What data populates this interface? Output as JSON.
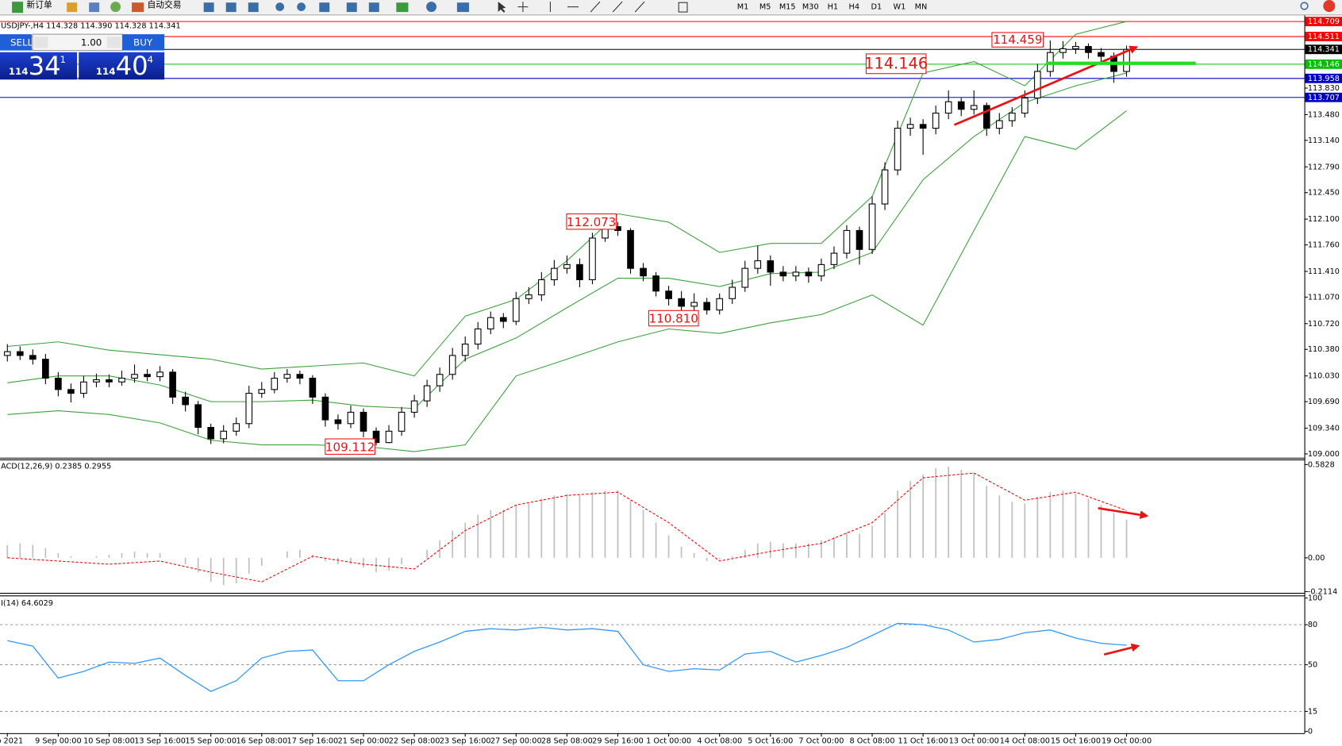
{
  "toolbar": {
    "new_order": "新订单",
    "auto_trading": "自动交易",
    "timeframes": [
      "M1",
      "M5",
      "M15",
      "M30",
      "H1",
      "H4",
      "D1",
      "W1",
      "MN"
    ]
  },
  "order_panel": {
    "sell_label": "SELL",
    "buy_label": "BUY",
    "lots": "1.00",
    "sell": {
      "big": "114",
      "pips": "34",
      "frac": "1"
    },
    "buy": {
      "big": "114",
      "pips": "40",
      "frac": "4"
    }
  },
  "chart_data": [
    {
      "type": "candlestick",
      "title": "USDJPY-,H4  114.328 114.390 114.328 114.341",
      "categories": [
        "ep 2021",
        null,
        null,
        null,
        "9 Sep 00:00",
        null,
        null,
        null,
        "10 Sep 08:00",
        null,
        null,
        null,
        "13 Sep 16:00",
        null,
        null,
        null,
        "15 Sep 00:00",
        null,
        null,
        null,
        "16 Sep 08:00",
        null,
        null,
        null,
        "17 Sep 16:00",
        null,
        null,
        null,
        "21 Sep 00:00",
        null,
        null,
        null,
        "22 Sep 08:00",
        null,
        null,
        null,
        "23 Sep 16:00",
        null,
        null,
        null,
        "27 Sep 00:00",
        null,
        null,
        null,
        "28 Sep 08:00",
        null,
        null,
        null,
        "29 Sep 16:00",
        null,
        null,
        null,
        "1 Oct 00:00",
        null,
        null,
        null,
        "4 Oct 08:00",
        null,
        null,
        null,
        "5 Oct 16:00",
        null,
        null,
        null,
        "7 Oct 00:00",
        null,
        null,
        null,
        "8 Oct 08:00",
        null,
        null,
        null,
        "11 Oct 16:00",
        null,
        null,
        null,
        "13 Oct 00:00",
        null,
        null,
        null,
        "14 Oct 08:00",
        null,
        null,
        null,
        "15 Oct 16:00",
        null,
        null,
        null,
        "19 Oct 00:00"
      ],
      "open": [
        110.3,
        110.35,
        110.3,
        110.25,
        110.0,
        109.85,
        109.8,
        109.95,
        109.98,
        109.95,
        110.0,
        110.05,
        110.02,
        110.08,
        109.75,
        109.65,
        109.35,
        109.2,
        109.3,
        109.4,
        109.8,
        109.85,
        110.0,
        110.05,
        110.0,
        109.75,
        109.45,
        109.4,
        109.55,
        109.3,
        109.15,
        109.3,
        109.55,
        109.7,
        109.9,
        110.05,
        110.3,
        110.45,
        110.65,
        110.8,
        110.75,
        111.05,
        111.1,
        111.3,
        111.45,
        111.5,
        111.3,
        111.85,
        112.0,
        111.95,
        111.45,
        111.35,
        111.15,
        111.05,
        110.95,
        111.0,
        110.9,
        111.05,
        111.2,
        111.45,
        111.55,
        111.4,
        111.35,
        111.4,
        111.35,
        111.5,
        111.65,
        111.95,
        111.7,
        112.3,
        112.75,
        113.3,
        113.35,
        113.3,
        113.5,
        113.65,
        113.55,
        113.6,
        113.3,
        113.4,
        113.5,
        113.7,
        114.05,
        114.3,
        114.35,
        114.38,
        114.3,
        114.25,
        114.05
      ],
      "high": [
        110.45,
        110.42,
        110.38,
        110.32,
        110.08,
        109.93,
        110.03,
        110.06,
        110.05,
        110.1,
        110.18,
        110.12,
        110.16,
        110.12,
        109.82,
        109.7,
        109.4,
        109.38,
        109.48,
        109.9,
        109.95,
        110.08,
        110.12,
        110.1,
        110.04,
        109.8,
        109.52,
        109.64,
        109.6,
        109.35,
        109.38,
        109.62,
        109.78,
        109.98,
        110.14,
        110.4,
        110.55,
        110.74,
        110.88,
        110.86,
        111.14,
        111.2,
        111.4,
        111.56,
        111.62,
        111.58,
        111.92,
        112.073,
        112.06,
        111.98,
        111.52,
        111.4,
        111.22,
        111.15,
        111.12,
        111.06,
        111.12,
        111.3,
        111.55,
        111.75,
        111.62,
        111.48,
        111.48,
        111.46,
        111.58,
        111.74,
        112.02,
        112.0,
        112.4,
        112.85,
        113.4,
        113.44,
        113.42,
        113.6,
        113.8,
        113.7,
        113.8,
        113.64,
        113.5,
        113.58,
        113.8,
        114.15,
        114.459,
        114.45,
        114.44,
        114.42,
        114.36,
        114.3,
        114.39
      ],
      "low": [
        110.22,
        110.24,
        110.18,
        109.92,
        109.76,
        109.68,
        109.74,
        109.88,
        109.88,
        109.9,
        109.94,
        109.96,
        109.96,
        109.66,
        109.56,
        109.26,
        109.13,
        109.14,
        109.24,
        109.34,
        109.74,
        109.8,
        109.94,
        109.92,
        109.66,
        109.36,
        109.32,
        109.34,
        109.22,
        109.112,
        109.14,
        109.24,
        109.48,
        109.62,
        109.82,
        109.98,
        110.22,
        110.38,
        110.58,
        110.66,
        110.7,
        110.98,
        111.02,
        111.22,
        111.38,
        111.2,
        111.24,
        111.8,
        111.88,
        111.38,
        111.28,
        111.08,
        110.96,
        110.81,
        110.88,
        110.84,
        110.84,
        110.98,
        111.14,
        111.38,
        111.22,
        111.28,
        111.28,
        111.26,
        111.28,
        111.44,
        111.58,
        111.5,
        111.64,
        112.22,
        112.68,
        113.2,
        112.95,
        113.22,
        113.42,
        113.46,
        113.48,
        113.2,
        113.22,
        113.32,
        113.44,
        113.62,
        113.98,
        114.22,
        114.28,
        114.22,
        114.18,
        113.9,
        113.98
      ],
      "close": [
        110.35,
        110.3,
        110.25,
        110.0,
        109.85,
        109.8,
        109.95,
        109.98,
        109.95,
        110.0,
        110.05,
        110.02,
        110.08,
        109.75,
        109.65,
        109.35,
        109.2,
        109.3,
        109.4,
        109.8,
        109.85,
        110.0,
        110.05,
        110.0,
        109.75,
        109.45,
        109.4,
        109.55,
        109.3,
        109.15,
        109.3,
        109.55,
        109.7,
        109.9,
        110.05,
        110.3,
        110.45,
        110.65,
        110.8,
        110.75,
        111.05,
        111.1,
        111.3,
        111.45,
        111.5,
        111.3,
        111.85,
        112.0,
        111.95,
        111.45,
        111.35,
        111.15,
        111.05,
        110.95,
        111.0,
        110.9,
        111.05,
        111.2,
        111.45,
        111.55,
        111.4,
        111.35,
        111.4,
        111.35,
        111.5,
        111.65,
        111.95,
        111.7,
        112.3,
        112.75,
        113.3,
        113.35,
        113.3,
        113.5,
        113.65,
        113.55,
        113.6,
        113.3,
        113.4,
        113.5,
        113.7,
        114.05,
        114.3,
        114.35,
        114.38,
        114.3,
        114.25,
        114.05,
        114.341
      ],
      "up_color": "#ffffff",
      "down_color": "#000000",
      "bands": {
        "color": "#3aa33a",
        "x": [
          0,
          4,
          8,
          12,
          16,
          20,
          24,
          28,
          32,
          36,
          40,
          44,
          48,
          52,
          56,
          60,
          64,
          68,
          72,
          76,
          80,
          84,
          88
        ],
        "series": [
          {
            "values": [
              110.42,
              110.48,
              110.37,
              110.31,
              110.25,
              110.12,
              110.16,
              110.2,
              110.03,
              110.82,
              111.04,
              111.55,
              112.17,
              112.06,
              111.66,
              111.78,
              111.78,
              112.4,
              114.03,
              114.18,
              113.86,
              114.54,
              114.71
            ]
          },
          {
            "values": [
              109.94,
              110.03,
              110.03,
              109.91,
              109.69,
              109.69,
              109.71,
              109.63,
              109.6,
              110.25,
              110.53,
              110.93,
              111.32,
              111.32,
              111.21,
              111.38,
              111.4,
              111.66,
              112.62,
              113.19,
              113.64,
              113.86,
              114.03
            ]
          },
          {
            "values": [
              109.52,
              109.57,
              109.52,
              109.41,
              109.18,
              109.12,
              109.12,
              109.1,
              109.03,
              109.12,
              110.03,
              110.25,
              110.48,
              110.65,
              110.59,
              110.73,
              110.84,
              111.1,
              110.7,
              111.95,
              113.19,
              113.02,
              113.53
            ]
          }
        ]
      },
      "ylim": [
        108.95,
        114.79
      ],
      "yticks": [
        {
          "value": 113.83,
          "label": "113.830"
        },
        {
          "value": 113.48,
          "label": "113.480"
        },
        {
          "value": 113.14,
          "label": "113.140"
        },
        {
          "value": 112.79,
          "label": "112.790"
        },
        {
          "value": 112.45,
          "label": "112.450"
        },
        {
          "value": 112.1,
          "label": "112.100"
        },
        {
          "value": 111.76,
          "label": "111.760"
        },
        {
          "value": 111.41,
          "label": "111.410"
        },
        {
          "value": 111.07,
          "label": "111.070"
        },
        {
          "value": 110.72,
          "label": "110.720"
        },
        {
          "value": 110.38,
          "label": "110.380"
        },
        {
          "value": 110.03,
          "label": "110.030"
        },
        {
          "value": 109.69,
          "label": "109.690"
        },
        {
          "value": 109.34,
          "label": "109.340"
        },
        {
          "value": 109,
          "label": "109.000"
        }
      ],
      "levels": [
        {
          "value": 114.709,
          "color": "#ff0000"
        },
        {
          "value": 114.511,
          "color": "#ff0000"
        },
        {
          "value": 114.341,
          "color": "#000000"
        },
        {
          "value": 114.146,
          "color": "#00c000"
        },
        {
          "value": 113.958,
          "color": "#0000c8"
        },
        {
          "value": 113.707,
          "color": "#0000c8"
        }
      ],
      "annotations": [
        "114.459",
        "114.146",
        "112.073",
        "110.810",
        "109.112"
      ]
    },
    {
      "type": "macd",
      "title": "ACD(12,26,9) 0.2385 0.2955",
      "color": "#c0c0c0",
      "values": [
        0.08,
        0.09,
        0.08,
        0.06,
        0.03,
        0.01,
        0.0,
        0.01,
        0.02,
        0.03,
        0.04,
        0.03,
        0.03,
        0.0,
        -0.04,
        -0.09,
        -0.15,
        -0.17,
        -0.16,
        -0.1,
        -0.05,
        0.0,
        0.04,
        0.05,
        0.02,
        -0.02,
        -0.04,
        -0.04,
        -0.06,
        -0.09,
        -0.08,
        -0.04,
        0.0,
        0.05,
        0.11,
        0.17,
        0.22,
        0.27,
        0.3,
        0.3,
        0.33,
        0.34,
        0.37,
        0.39,
        0.4,
        0.39,
        0.41,
        0.42,
        0.42,
        0.36,
        0.3,
        0.22,
        0.14,
        0.07,
        0.03,
        -0.02,
        -0.01,
        0.01,
        0.05,
        0.09,
        0.1,
        0.09,
        0.09,
        0.09,
        0.11,
        0.13,
        0.16,
        0.15,
        0.2,
        0.28,
        0.42,
        0.48,
        0.52,
        0.56,
        0.57,
        0.55,
        0.53,
        0.45,
        0.39,
        0.35,
        0.34,
        0.38,
        0.41,
        0.42,
        0.4,
        0.37,
        0.33,
        0.28,
        0.2385
      ],
      "signal": {
        "color": "#ff0000",
        "x": [
          0,
          4,
          8,
          12,
          16,
          20,
          24,
          28,
          32,
          36,
          40,
          44,
          48,
          52,
          56,
          60,
          64,
          68,
          72,
          76,
          80,
          84,
          88
        ],
        "values": [
          0.0,
          -0.02,
          -0.04,
          -0.02,
          -0.09,
          -0.15,
          0.01,
          -0.04,
          -0.07,
          0.17,
          0.33,
          0.39,
          0.41,
          0.22,
          -0.02,
          0.04,
          0.09,
          0.22,
          0.5,
          0.53,
          0.36,
          0.41,
          0.2955
        ]
      },
      "ylim": [
        -0.219,
        0.615
      ],
      "yticks": [
        0.5828,
        {
          "value": 0,
          "label": "0.00"
        },
        -0.2114
      ]
    },
    {
      "type": "line",
      "title": "I(14) 64.6029",
      "color": "#3399ff",
      "grid": "dashed",
      "x": [
        0,
        2,
        4,
        6,
        8,
        10,
        12,
        14,
        16,
        18,
        20,
        22,
        24,
        26,
        28,
        30,
        32,
        34,
        36,
        38,
        40,
        42,
        44,
        46,
        48,
        50,
        52,
        54,
        56,
        58,
        60,
        62,
        64,
        66,
        68,
        70,
        72,
        74,
        76,
        78,
        80,
        82,
        84,
        86,
        88
      ],
      "values": [
        68,
        64,
        40,
        45,
        52,
        51,
        55,
        42,
        30,
        38,
        55,
        60,
        61,
        38,
        38,
        50,
        60,
        67,
        75,
        77,
        76,
        78,
        76,
        77,
        75,
        50,
        45,
        47,
        46,
        58,
        60,
        52,
        57,
        63,
        72,
        81,
        80,
        76,
        67,
        69,
        74,
        76,
        70,
        66,
        64.6029
      ],
      "ylim": [
        0,
        100
      ],
      "yticks": [
        100,
        80,
        50,
        15,
        0
      ]
    }
  ]
}
